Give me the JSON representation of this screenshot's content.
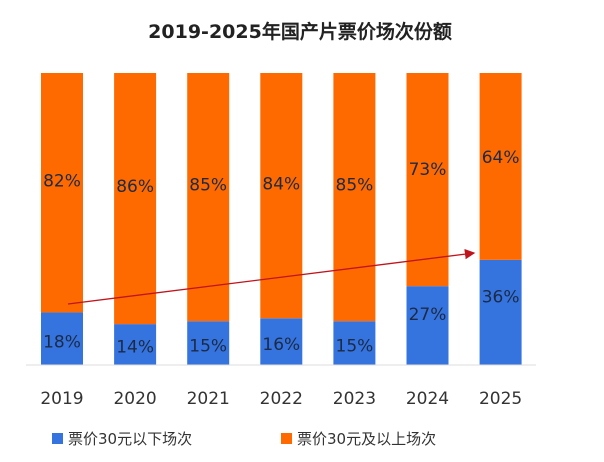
{
  "chart_data": {
    "type": "bar",
    "stacked": true,
    "title": "2019-2025年国产片票价场次份额",
    "categories": [
      "2019",
      "2020",
      "2021",
      "2022",
      "2023",
      "2024",
      "2025"
    ],
    "series": [
      {
        "name": "票价30元以下场次",
        "color": "#3574DF",
        "values": [
          18,
          14,
          15,
          16,
          15,
          27,
          36
        ],
        "labels": [
          "18%",
          "14%",
          "15%",
          "16%",
          "15%",
          "27%",
          "36%"
        ]
      },
      {
        "name": "票价30元及以上场次",
        "color": "#FF6A00",
        "values": [
          82,
          86,
          85,
          84,
          85,
          73,
          64
        ],
        "labels": [
          "82%",
          "86%",
          "85%",
          "84%",
          "85%",
          "73%",
          "64%"
        ]
      }
    ],
    "ylim": [
      0,
      100
    ],
    "grid": false,
    "legend": "bottom",
    "annotation": {
      "type": "arrow",
      "from": "2019",
      "to": "2025",
      "color": "#C0141C"
    }
  }
}
